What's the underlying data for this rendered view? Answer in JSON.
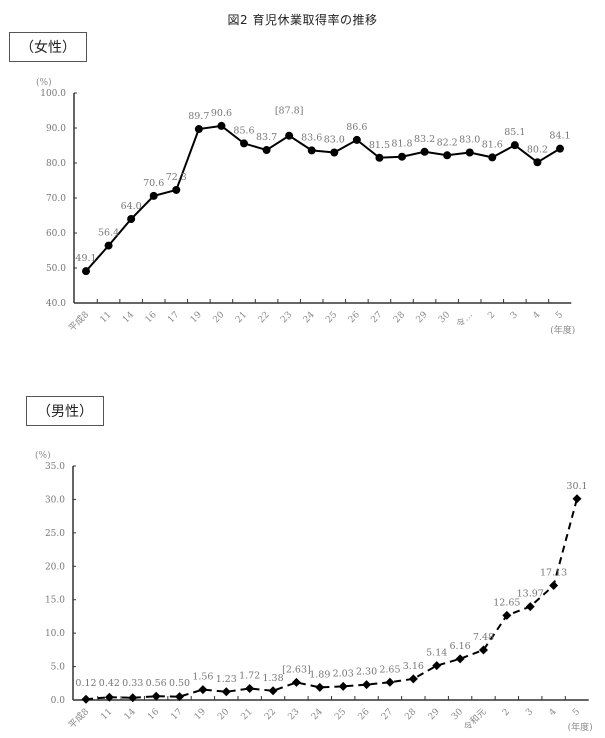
{
  "figure": {
    "title": "図2 育児休業取得率の推移"
  },
  "sections": {
    "female_label": "（女性）",
    "male_label": "（男性）"
  },
  "chart_data": [
    {
      "type": "line",
      "title": "（女性）",
      "ylabel": "(%)",
      "xlabel": "(年度)",
      "ylim": [
        40.0,
        100.0
      ],
      "yticks": [
        "40.0",
        "50.0",
        "60.0",
        "70.0",
        "80.0",
        "90.0",
        "100.0"
      ],
      "grid": false,
      "marker": "circle",
      "line_style": "solid",
      "categories": [
        "平成8",
        "11",
        "14",
        "16",
        "17",
        "19",
        "20",
        "21",
        "22",
        "23",
        "24",
        "25",
        "26",
        "27",
        "28",
        "29",
        "30",
        "令和元",
        "2",
        "3",
        "4",
        "5"
      ],
      "category_labels_display": [
        "平成8",
        "11",
        "14",
        "16",
        "17",
        "19",
        "20",
        "21",
        "22",
        "23",
        "24",
        "25",
        "26",
        "27",
        "28",
        "29",
        "30",
        "令…",
        "2",
        "3",
        "4",
        "5"
      ],
      "values": [
        49.1,
        56.4,
        64.0,
        70.6,
        72.3,
        89.7,
        90.6,
        85.6,
        83.7,
        87.8,
        83.6,
        83.0,
        86.6,
        81.5,
        81.8,
        83.2,
        82.2,
        83.0,
        81.6,
        85.1,
        80.2,
        84.1
      ],
      "value_labels": [
        "49.1",
        "56.4",
        "64.0",
        "70.6",
        "72.3",
        "89.7",
        "90.6",
        "85.6",
        "83.7",
        "[87.8]",
        "83.6",
        "83.0",
        "86.6",
        "81.5",
        "81.8",
        "83.2",
        "82.2",
        "83.0",
        "81.6",
        "85.1",
        "80.2",
        "84.1"
      ]
    },
    {
      "type": "line",
      "title": "（男性）",
      "ylabel": "(%)",
      "xlabel": "(年度)",
      "ylim": [
        0.0,
        35.0
      ],
      "yticks": [
        "0.0",
        "5.0",
        "10.0",
        "15.0",
        "20.0",
        "25.0",
        "30.0",
        "35.0"
      ],
      "grid": false,
      "marker": "diamond",
      "line_style": "dashed",
      "categories": [
        "平成8",
        "11",
        "14",
        "16",
        "17",
        "19",
        "20",
        "21",
        "22",
        "23",
        "24",
        "25",
        "26",
        "27",
        "28",
        "29",
        "30",
        "令和元",
        "2",
        "3",
        "4",
        "5"
      ],
      "category_labels_display": [
        "平成8",
        "11",
        "14",
        "16",
        "17",
        "19",
        "20",
        "21",
        "22",
        "23",
        "24",
        "25",
        "26",
        "27",
        "28",
        "29",
        "30",
        "令和元",
        "2",
        "3",
        "4",
        "5"
      ],
      "values": [
        0.12,
        0.42,
        0.33,
        0.56,
        0.5,
        1.56,
        1.23,
        1.72,
        1.38,
        2.63,
        1.89,
        2.03,
        2.3,
        2.65,
        3.16,
        5.14,
        6.16,
        7.48,
        12.65,
        13.97,
        17.13,
        30.1
      ],
      "value_labels": [
        "0.12",
        "0.42",
        "0.33",
        "0.56",
        "0.50",
        "1.56",
        "1.23",
        "1.72",
        "1.38",
        "[2.63]",
        "1.89",
        "2.03",
        "2.30",
        "2.65",
        "3.16",
        "5.14",
        "6.16",
        "7.48",
        "12.65",
        "13.97",
        "17.13",
        "30.1"
      ]
    }
  ]
}
